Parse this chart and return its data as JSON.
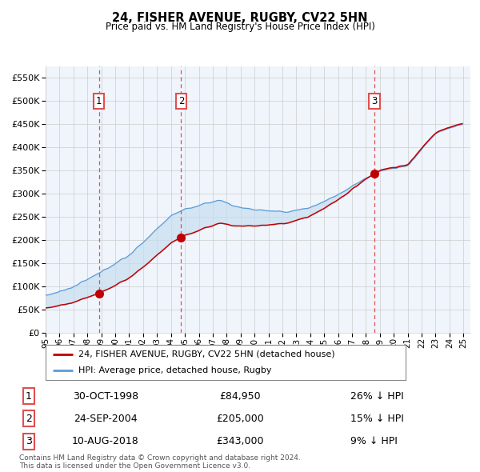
{
  "title": "24, FISHER AVENUE, RUGBY, CV22 5HN",
  "subtitle": "Price paid vs. HM Land Registry's House Price Index (HPI)",
  "hpi_color": "#5b9bd5",
  "price_color": "#c00000",
  "vline_color": "#e05050",
  "marker_color": "#c00000",
  "fill_color": "#c8ddf0",
  "background_chart": "#f0f5fc",
  "ylim": [
    0,
    575000
  ],
  "yticks": [
    0,
    50000,
    100000,
    150000,
    200000,
    250000,
    300000,
    350000,
    400000,
    450000,
    500000,
    550000
  ],
  "sales": [
    {
      "date_num": 1998.83,
      "price": 84950,
      "label": "1"
    },
    {
      "date_num": 2004.73,
      "price": 205000,
      "label": "2"
    },
    {
      "date_num": 2018.6,
      "price": 343000,
      "label": "3"
    }
  ],
  "legend_entries": [
    "24, FISHER AVENUE, RUGBY, CV22 5HN (detached house)",
    "HPI: Average price, detached house, Rugby"
  ],
  "table_rows": [
    {
      "num": "1",
      "date": "30-OCT-1998",
      "price": "£84,950",
      "hpi": "26% ↓ HPI"
    },
    {
      "num": "2",
      "date": "24-SEP-2004",
      "price": "£205,000",
      "hpi": "15% ↓ HPI"
    },
    {
      "num": "3",
      "date": "10-AUG-2018",
      "price": "£343,000",
      "hpi": "9% ↓ HPI"
    }
  ],
  "footer": "Contains HM Land Registry data © Crown copyright and database right 2024.\nThis data is licensed under the Open Government Licence v3.0."
}
